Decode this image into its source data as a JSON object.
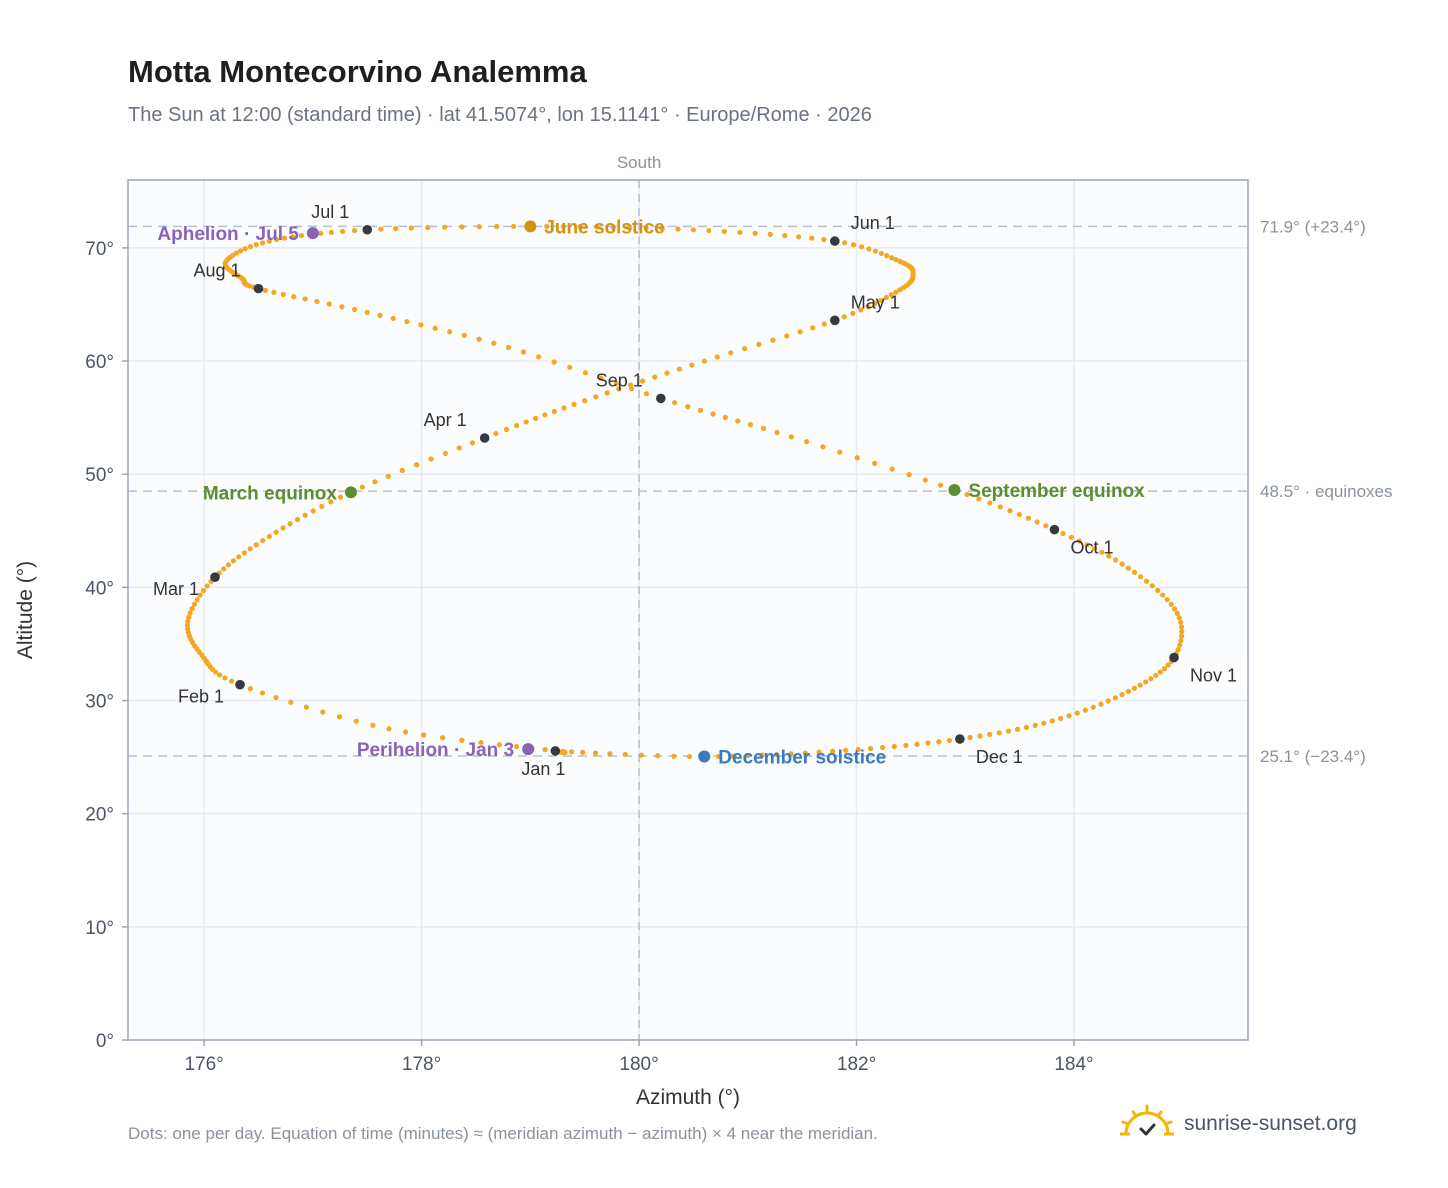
{
  "title": "Motta Montecorvino Analemma",
  "subtitle": "The Sun at 12:00 (standard time) · lat 41.5074°, lon 15.1141° · Europe/Rome · 2026",
  "footnote": "Dots: one per day. Equation of time (minutes) ≈ (meridian azimuth − azimuth) × 4 near the meridian.",
  "brand": {
    "name": "sunrise-sunset.org",
    "icon": "sun-logo-icon"
  },
  "chart_data": {
    "type": "scatter",
    "xlabel": "Azimuth (°)",
    "ylabel": "Altitude (°)",
    "xlim": [
      175.3,
      185.6
    ],
    "ylim": [
      0,
      76
    ],
    "xticks": [
      176,
      178,
      180,
      182,
      184
    ],
    "xtick_labels": [
      "176°",
      "178°",
      "180°",
      "182°",
      "184°"
    ],
    "yticks": [
      0,
      10,
      20,
      30,
      40,
      50,
      60,
      70
    ],
    "ytick_labels": [
      "0°",
      "10°",
      "20°",
      "30°",
      "40°",
      "50°",
      "60°",
      "70°"
    ],
    "grid": true,
    "meridian": {
      "azimuth": 180,
      "label": "South"
    },
    "reference_lines": [
      {
        "altitude": 71.9,
        "label": "71.9° (+23.4°)"
      },
      {
        "altitude": 48.5,
        "label": "48.5° · equinoxes"
      },
      {
        "altitude": 25.1,
        "label": "25.1° (−23.4°)"
      }
    ],
    "curve_color": "#f5a623",
    "month_color": "#343a40",
    "analemma_points": [
      {
        "date": "Jan 1",
        "az": 179.23,
        "alt": 25.55
      },
      {
        "date": "Jan 15",
        "az": 177.7,
        "alt": 27.5
      },
      {
        "date": "Feb 1",
        "az": 176.33,
        "alt": 31.4
      },
      {
        "date": "Feb 10",
        "az": 175.98,
        "alt": 34.0
      },
      {
        "date": "Feb 20",
        "az": 175.85,
        "alt": 37.0
      },
      {
        "date": "Mar 1",
        "az": 176.1,
        "alt": 40.9
      },
      {
        "date": "Mar 10",
        "az": 176.6,
        "alt": 44.5
      },
      {
        "date": "Mar 20",
        "az": 177.35,
        "alt": 48.4
      },
      {
        "date": "Apr 1",
        "az": 178.58,
        "alt": 53.2
      },
      {
        "date": "Apr 10",
        "az": 179.5,
        "alt": 56.5
      },
      {
        "date": "Apr 20",
        "az": 180.6,
        "alt": 60.0
      },
      {
        "date": "May 1",
        "az": 181.8,
        "alt": 63.6
      },
      {
        "date": "May 10",
        "az": 182.4,
        "alt": 66.3
      },
      {
        "date": "May 15",
        "az": 182.52,
        "alt": 67.7
      },
      {
        "date": "May 20",
        "az": 182.4,
        "alt": 68.8
      },
      {
        "date": "Jun 1",
        "az": 181.8,
        "alt": 70.6
      },
      {
        "date": "Jun 10",
        "az": 180.5,
        "alt": 71.6
      },
      {
        "date": "Jun 21",
        "az": 179.0,
        "alt": 71.9
      },
      {
        "date": "Jul 1",
        "az": 177.5,
        "alt": 71.6
      },
      {
        "date": "Jul 10",
        "az": 176.6,
        "alt": 70.6
      },
      {
        "date": "Jul 20",
        "az": 176.2,
        "alt": 68.8
      },
      {
        "date": "Jul 27",
        "az": 176.35,
        "alt": 67.3
      },
      {
        "date": "Aug 1",
        "az": 176.5,
        "alt": 66.4
      },
      {
        "date": "Aug 10",
        "az": 177.5,
        "alt": 64.3
      },
      {
        "date": "Aug 20",
        "az": 178.8,
        "alt": 61.2
      },
      {
        "date": "Sep 1",
        "az": 180.2,
        "alt": 56.7
      },
      {
        "date": "Sep 10",
        "az": 181.4,
        "alt": 53.3
      },
      {
        "date": "Sep 23",
        "az": 182.9,
        "alt": 48.6
      },
      {
        "date": "Oct 1",
        "az": 183.82,
        "alt": 45.1
      },
      {
        "date": "Oct 10",
        "az": 184.5,
        "alt": 41.7
      },
      {
        "date": "Oct 20",
        "az": 184.95,
        "alt": 37.7
      },
      {
        "date": "Nov 1",
        "az": 184.92,
        "alt": 33.8
      },
      {
        "date": "Nov 10",
        "az": 184.5,
        "alt": 30.8
      },
      {
        "date": "Nov 20",
        "az": 183.8,
        "alt": 28.2
      },
      {
        "date": "Dec 1",
        "az": 182.95,
        "alt": 26.6
      },
      {
        "date": "Dec 10",
        "az": 181.9,
        "alt": 25.6
      },
      {
        "date": "Dec 21",
        "az": 180.6,
        "alt": 25.05
      },
      {
        "date": "Dec 31",
        "az": 179.3,
        "alt": 25.5
      }
    ],
    "month_markers": [
      {
        "label": "Jan 1",
        "az": 179.23,
        "alt": 25.55,
        "pos": "below"
      },
      {
        "label": "Feb 1",
        "az": 176.33,
        "alt": 31.4,
        "pos": "below-left"
      },
      {
        "label": "Mar 1",
        "az": 176.1,
        "alt": 40.9,
        "pos": "below-left"
      },
      {
        "label": "Apr 1",
        "az": 178.58,
        "alt": 53.2,
        "pos": "above-left"
      },
      {
        "label": "May 1",
        "az": 181.8,
        "alt": 63.6,
        "pos": "above-right"
      },
      {
        "label": "Jun 1",
        "az": 181.8,
        "alt": 70.6,
        "pos": "above-right"
      },
      {
        "label": "Jul 1",
        "az": 177.5,
        "alt": 71.6,
        "pos": "above-left"
      },
      {
        "label": "Aug 1",
        "az": 176.5,
        "alt": 66.4,
        "pos": "above-left"
      },
      {
        "label": "Sep 1",
        "az": 180.2,
        "alt": 56.7,
        "pos": "above-left"
      },
      {
        "label": "Oct 1",
        "az": 183.82,
        "alt": 45.1,
        "pos": "below-right"
      },
      {
        "label": "Nov 1",
        "az": 184.92,
        "alt": 33.8,
        "pos": "below-right"
      },
      {
        "label": "Dec 1",
        "az": 182.95,
        "alt": 26.6,
        "pos": "below-right"
      }
    ],
    "events": [
      {
        "label": "June solstice",
        "az": 179.0,
        "alt": 71.9,
        "color": "#d4930e",
        "side": "right"
      },
      {
        "label": "December solstice",
        "az": 180.6,
        "alt": 25.05,
        "color": "#3a7bbf",
        "side": "right"
      },
      {
        "label": "March equinox",
        "az": 177.35,
        "alt": 48.4,
        "color": "#5a8f2e",
        "side": "left"
      },
      {
        "label": "September equinox",
        "az": 182.9,
        "alt": 48.6,
        "color": "#5a8f2e",
        "side": "right"
      },
      {
        "label": "Aphelion · Jul 5",
        "az": 177.0,
        "alt": 71.3,
        "color": "#8a63b8",
        "side": "left"
      },
      {
        "label": "Perihelion · Jan 3",
        "az": 178.98,
        "alt": 25.7,
        "color": "#8a63b8",
        "side": "left"
      }
    ]
  }
}
